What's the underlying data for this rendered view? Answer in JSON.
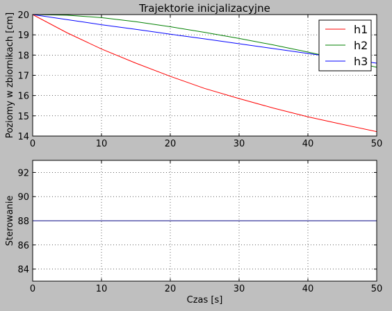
{
  "chart_data": [
    {
      "type": "line",
      "title": "Trajektorie inicjalizacyjne",
      "xlabel": "",
      "ylabel": "Poziomy w zbiornikach [cm]",
      "xlim": [
        0,
        50
      ],
      "ylim": [
        14,
        20
      ],
      "xticks": [
        "0",
        "10",
        "20",
        "30",
        "40",
        "50"
      ],
      "yticks": [
        "14",
        "15",
        "16",
        "17",
        "18",
        "19",
        "20"
      ],
      "grid": true,
      "legend_position": "top-right",
      "x": [
        0,
        5,
        10,
        15,
        20,
        25,
        30,
        35,
        40,
        45,
        50
      ],
      "series": [
        {
          "name": "h1",
          "color": "#ff0000",
          "values": [
            20.0,
            19.1,
            18.3,
            17.6,
            16.95,
            16.35,
            15.85,
            15.38,
            14.95,
            14.58,
            14.22
          ]
        },
        {
          "name": "h2",
          "color": "#008000",
          "values": [
            20.0,
            19.97,
            19.85,
            19.65,
            19.4,
            19.12,
            18.82,
            18.5,
            18.15,
            17.78,
            17.4
          ]
        },
        {
          "name": "h3",
          "color": "#0000ff",
          "values": [
            20.0,
            19.75,
            19.5,
            19.27,
            19.03,
            18.8,
            18.56,
            18.32,
            18.08,
            17.84,
            17.6
          ]
        }
      ]
    },
    {
      "type": "line",
      "title": "",
      "xlabel": "Czas [s]",
      "ylabel": "Sterowanie",
      "xlim": [
        0,
        50
      ],
      "ylim": [
        83,
        93
      ],
      "xticks": [
        "0",
        "10",
        "20",
        "30",
        "40",
        "50"
      ],
      "yticks": [
        "84",
        "86",
        "88",
        "90",
        "92"
      ],
      "grid": true,
      "x": [
        0,
        50
      ],
      "series": [
        {
          "color": "#000080",
          "values": [
            88,
            88
          ]
        }
      ]
    }
  ]
}
